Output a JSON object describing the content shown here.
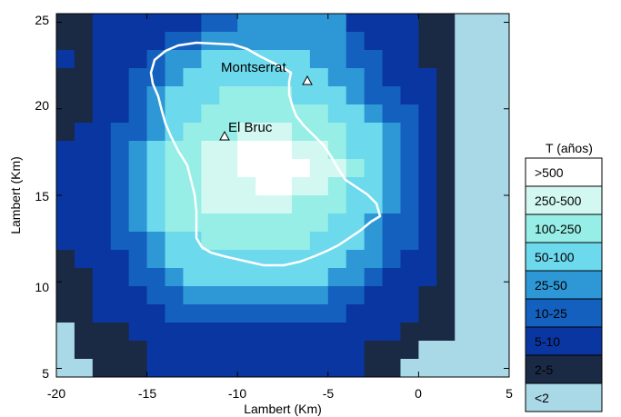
{
  "map": {
    "xlabel": "Lambert (Km)",
    "ylabel": "Lambert (Km)",
    "x_ticks": [
      "-20",
      "-15",
      "-10",
      "-5",
      "0",
      "5"
    ],
    "x_tick_values": [
      -20,
      -15,
      -10,
      -5,
      0,
      5
    ],
    "y_ticks": [
      "5",
      "10",
      "15",
      "20",
      "25"
    ],
    "y_tick_values": [
      5,
      10,
      15,
      20,
      25
    ],
    "xlim": [
      -20,
      5
    ],
    "ylim": [
      4.5,
      25.5
    ],
    "places": [
      {
        "name": "Montserrat",
        "x": -6.1,
        "y": 21.4
      },
      {
        "name": "El Bruc",
        "x": -10.7,
        "y": 18.3
      }
    ]
  },
  "legend": {
    "title": "T (años)",
    "classes": [
      {
        "label": ">500",
        "color": "#ffffff"
      },
      {
        "label": "250-500",
        "color": "#d2f8f1"
      },
      {
        "label": "100-250",
        "color": "#96eee6"
      },
      {
        "label": "50-100",
        "color": "#6cd9ed"
      },
      {
        "label": "25-50",
        "color": "#2e98d6"
      },
      {
        "label": "10-25",
        "color": "#1460bf"
      },
      {
        "label": "5-10",
        "color": "#0a36a2"
      },
      {
        "label": "2-5",
        "color": "#1a2944"
      },
      {
        "label": "<2",
        "color": "#a9d9e7"
      }
    ]
  }
}
